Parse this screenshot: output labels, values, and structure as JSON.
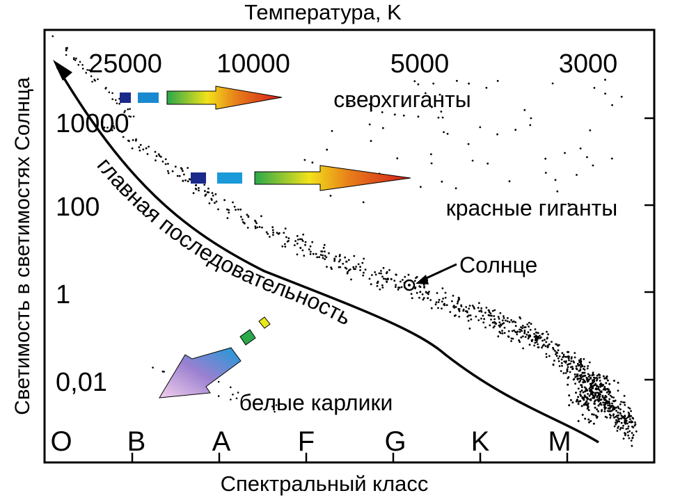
{
  "chart_data": {
    "type": "scatter",
    "title": "",
    "xlabel": "Спектральный класс",
    "x2label": "Температура, K",
    "ylabel": "Светимость в светимостях Солнца",
    "y_scale": "log",
    "x_categories": [
      "O",
      "B",
      "A",
      "F",
      "G",
      "K",
      "M"
    ],
    "temperature_ticks": [
      "25000",
      "10000",
      "5000",
      "3000"
    ],
    "luminosity_ticks": [
      "10000",
      "100",
      "1",
      "0,01"
    ],
    "annotations": {
      "supergiants": "сверхгиганты",
      "red_giants": "красные гиганты",
      "sun": "Солнце",
      "main_sequence": "главная последовательность",
      "white_dwarfs": "белые карлики"
    },
    "series": [
      {
        "values": "stars plotted as dots along the main sequence, giant branch and supergiant region"
      }
    ],
    "grid": false,
    "colors": {
      "gradient": [
        "#1a2a8a",
        "#1a9ad8",
        "#2aa84a",
        "#f2e21a",
        "#e8401a",
        "#c81a1a"
      ],
      "dwarf_gradient": [
        "#f2e21a",
        "#2aa84a",
        "#1a9ad8",
        "#8060c0",
        "#f2c8e8"
      ]
    }
  }
}
